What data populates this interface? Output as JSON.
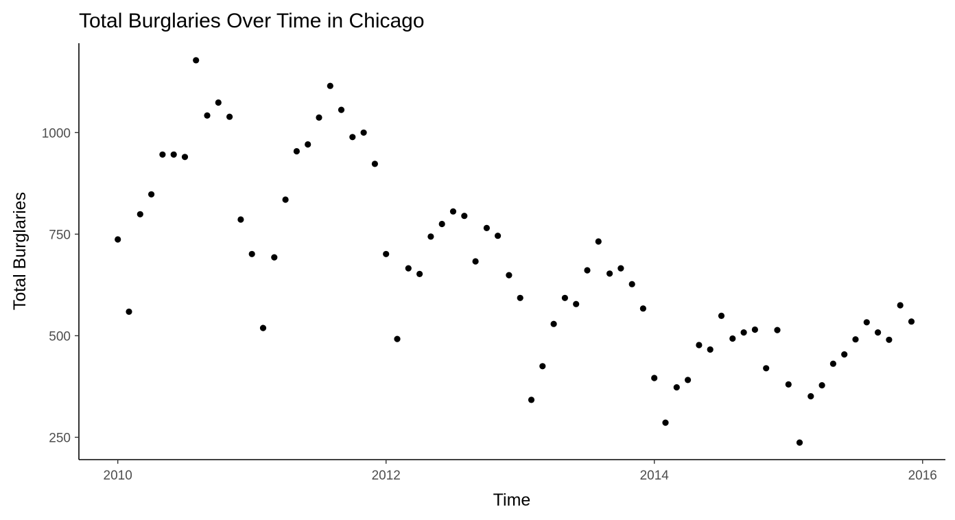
{
  "chart_data": {
    "type": "scatter",
    "title": "Total Burglaries Over Time in Chicago",
    "xlabel": "Time",
    "ylabel": "Total Burglaries",
    "x_ticks": [
      {
        "value": 2010,
        "label": "2010"
      },
      {
        "value": 2012,
        "label": "2012"
      },
      {
        "value": 2014,
        "label": "2014"
      },
      {
        "value": 2016,
        "label": "2016"
      }
    ],
    "y_ticks": [
      {
        "value": 250,
        "label": "250"
      },
      {
        "value": 500,
        "label": "500"
      },
      {
        "value": 750,
        "label": "750"
      },
      {
        "value": 1000,
        "label": "1000"
      }
    ],
    "xlim": [
      2009.71,
      2016.17
    ],
    "ylim": [
      195,
      1220
    ],
    "grid": false,
    "point_color": "#000000",
    "x": [
      "2010-01",
      "2010-02",
      "2010-03",
      "2010-04",
      "2010-05",
      "2010-06",
      "2010-07",
      "2010-08",
      "2010-09",
      "2010-10",
      "2010-11",
      "2010-12",
      "2011-01",
      "2011-02",
      "2011-03",
      "2011-04",
      "2011-05",
      "2011-06",
      "2011-07",
      "2011-08",
      "2011-09",
      "2011-10",
      "2011-11",
      "2011-12",
      "2012-01",
      "2012-02",
      "2012-03",
      "2012-04",
      "2012-05",
      "2012-06",
      "2012-07",
      "2012-08",
      "2012-09",
      "2012-10",
      "2012-11",
      "2012-12",
      "2013-01",
      "2013-02",
      "2013-03",
      "2013-04",
      "2013-05",
      "2013-06",
      "2013-07",
      "2013-08",
      "2013-09",
      "2013-10",
      "2013-11",
      "2013-12",
      "2014-01",
      "2014-02",
      "2014-03",
      "2014-04",
      "2014-05",
      "2014-06",
      "2014-07",
      "2014-08",
      "2014-09",
      "2014-10",
      "2014-11",
      "2014-12",
      "2015-01",
      "2015-02",
      "2015-03",
      "2015-04",
      "2015-05",
      "2015-06",
      "2015-07",
      "2015-08",
      "2015-09",
      "2015-10",
      "2015-11",
      "2015-12"
    ],
    "y": [
      737,
      559,
      799,
      848,
      946,
      946,
      940,
      1178,
      1042,
      1074,
      1039,
      786,
      701,
      519,
      693,
      835,
      954,
      971,
      1037,
      1115,
      1056,
      989,
      1000,
      923,
      701,
      492,
      666,
      652,
      744,
      775,
      806,
      795,
      683,
      765,
      746,
      649,
      593,
      342,
      425,
      529,
      593,
      578,
      661,
      732,
      653,
      666,
      627,
      567,
      396,
      286,
      373,
      391,
      477,
      466,
      549,
      493,
      508,
      515,
      420,
      514,
      380,
      237,
      351,
      378,
      431,
      454,
      491,
      533,
      508,
      490,
      575,
      535
    ]
  }
}
